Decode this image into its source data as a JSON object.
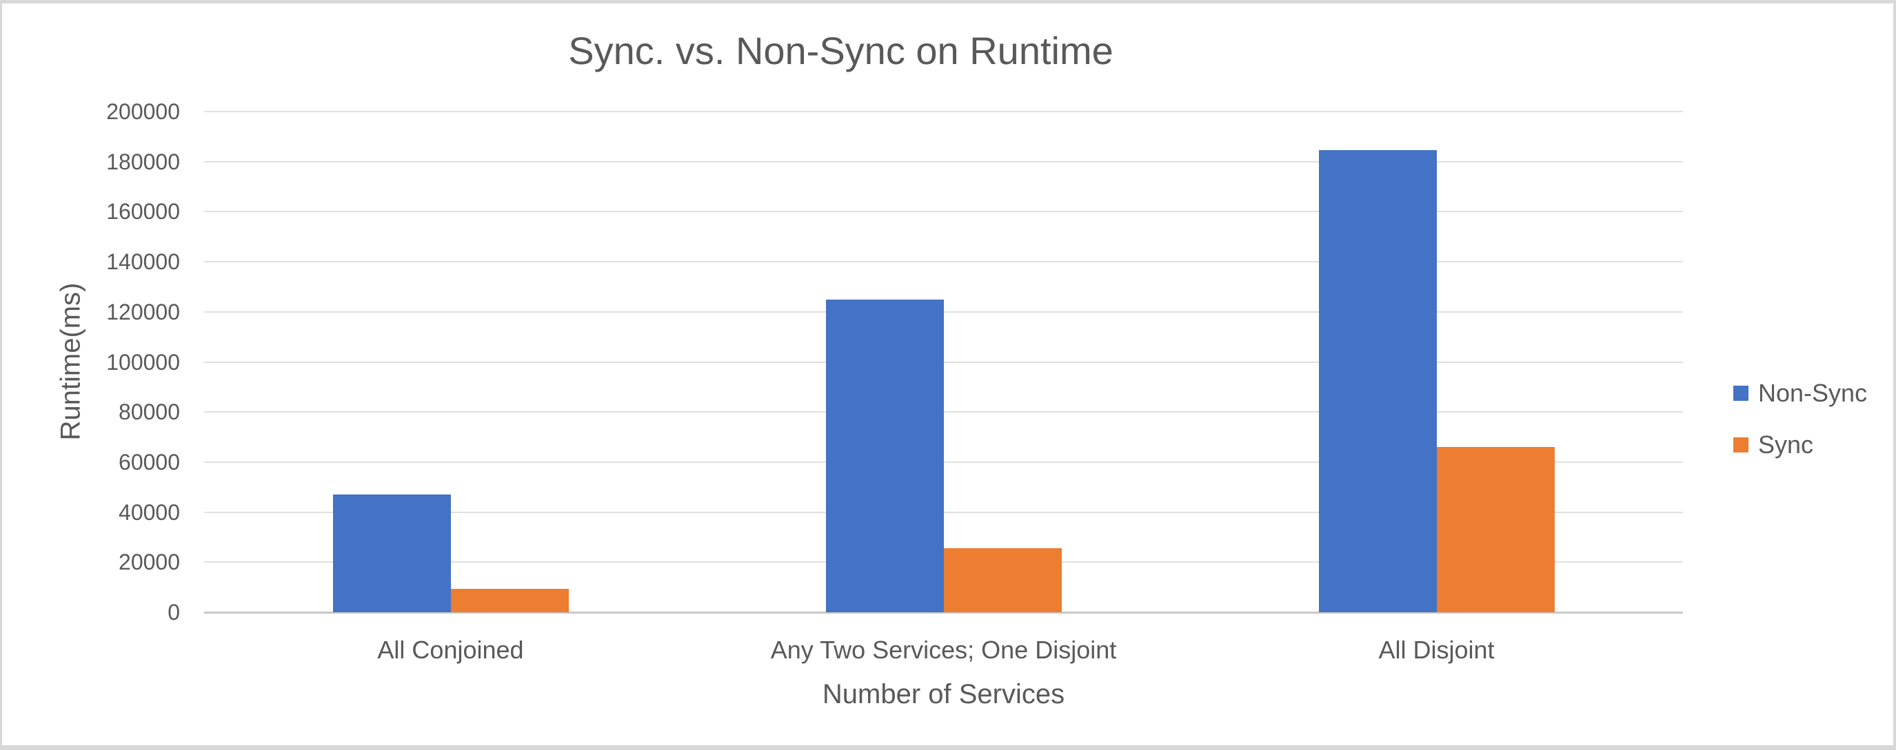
{
  "chart_data": {
    "type": "bar",
    "title": "Sync. vs. Non-Sync on Runtime",
    "xlabel": "Number of Services",
    "ylabel": "Runtime(ms)",
    "categories": [
      "All Conjoined",
      "Any Two Services; One Disjoint",
      "All Disjoint"
    ],
    "series": [
      {
        "name": "Non-Sync",
        "color": "#4472C4",
        "values": [
          47000,
          125000,
          184500
        ]
      },
      {
        "name": "Sync",
        "color": "#ED7D31",
        "values": [
          9400,
          25700,
          66000
        ]
      }
    ],
    "ylim": [
      0,
      200000
    ],
    "ytick_step": 20000,
    "ytick_labels": [
      "0",
      "20000",
      "40000",
      "60000",
      "80000",
      "100000",
      "120000",
      "140000",
      "160000",
      "180000",
      "200000"
    ],
    "grid": true,
    "legend_position": "right"
  },
  "colors": {
    "text": "#595959",
    "gridline": "#E0E0E0",
    "axis_line": "#C9C9C9",
    "frame_border": "#D8D8D8",
    "background": "#FFFFFF",
    "series_blue": "#4472C4",
    "series_orange": "#ED7D31"
  }
}
